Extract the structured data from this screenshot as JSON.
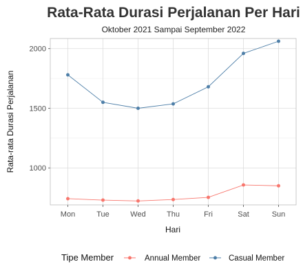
{
  "chart_data": {
    "type": "line",
    "title": "Rata-Rata Durasi Perjalanan Per Hari",
    "subtitle": "Oktober 2021 Sampai September 2022",
    "xlabel": "Hari",
    "ylabel": "Rata-rata Durasi Perjalanan",
    "categories": [
      "Mon",
      "Tue",
      "Wed",
      "Thu",
      "Fri",
      "Sat",
      "Sun"
    ],
    "ylim": [
      690,
      2085
    ],
    "yticks": [
      1000,
      1500,
      2000
    ],
    "grid": true,
    "legend_title": "Tipe Member",
    "legend_position": "bottom",
    "series": [
      {
        "name": "Annual Member",
        "color": "#F8766D",
        "values": [
          742,
          730,
          723,
          735,
          753,
          857,
          850
        ]
      },
      {
        "name": "Casual Member",
        "color": "#4E7FA8",
        "values": [
          1780,
          1550,
          1500,
          1537,
          1680,
          1960,
          2062
        ]
      }
    ]
  }
}
